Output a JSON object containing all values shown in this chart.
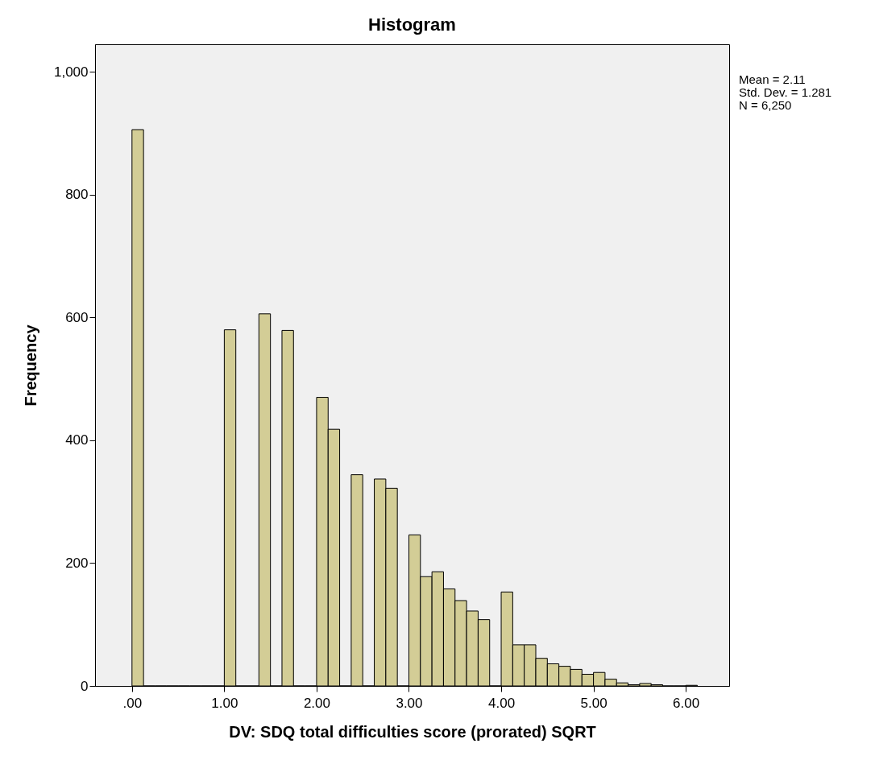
{
  "chart_data": {
    "type": "histogram",
    "title": "Histogram",
    "xlabel": "DV: SDQ total difficulties score (prorated) SQRT",
    "ylabel": "Frequency",
    "bins": [
      0,
      0.125,
      0.25,
      0.375,
      0.5,
      0.625,
      0.75,
      0.875,
      1,
      1.125,
      1.25,
      1.375,
      1.5,
      1.625,
      1.75,
      1.875,
      2,
      2.125,
      2.25,
      2.375,
      2.5,
      2.625,
      2.75,
      2.875,
      3,
      3.125,
      3.25,
      3.375,
      3.5,
      3.625,
      3.75,
      3.875,
      4,
      4.125,
      4.25,
      4.375,
      4.5,
      4.625,
      4.75,
      4.875,
      5,
      5.125,
      5.25,
      5.375,
      5.5,
      5.625,
      5.75,
      5.875,
      6,
      6.125
    ],
    "values": [
      906,
      0,
      0,
      0,
      0,
      0,
      0,
      0,
      580,
      0,
      0,
      606,
      0,
      579,
      0,
      0,
      470,
      418,
      0,
      344,
      0,
      337,
      322,
      0,
      246,
      178,
      186,
      158,
      139,
      122,
      108,
      0,
      153,
      67,
      67,
      45,
      36,
      32,
      27,
      19,
      22,
      11,
      5,
      2,
      4,
      2,
      0,
      0,
      1
    ],
    "color": "#d3cd96",
    "xlim": [
      -0.4,
      6.47
    ],
    "ylim": [
      0,
      1045
    ],
    "xticks": [
      {
        "value": 0,
        "label": ".00"
      },
      {
        "value": 1,
        "label": "1.00"
      },
      {
        "value": 2,
        "label": "2.00"
      },
      {
        "value": 3,
        "label": "3.00"
      },
      {
        "value": 4,
        "label": "4.00"
      },
      {
        "value": 5,
        "label": "5.00"
      },
      {
        "value": 6,
        "label": "6.00"
      }
    ],
    "yticks": [
      0,
      200,
      400,
      600,
      800,
      {
        "value": 1000,
        "label": "1,000"
      }
    ],
    "grid": false,
    "annotations": [
      "Mean = 2.11",
      "Std. Dev. = 1.281",
      "N = 6,250"
    ]
  }
}
